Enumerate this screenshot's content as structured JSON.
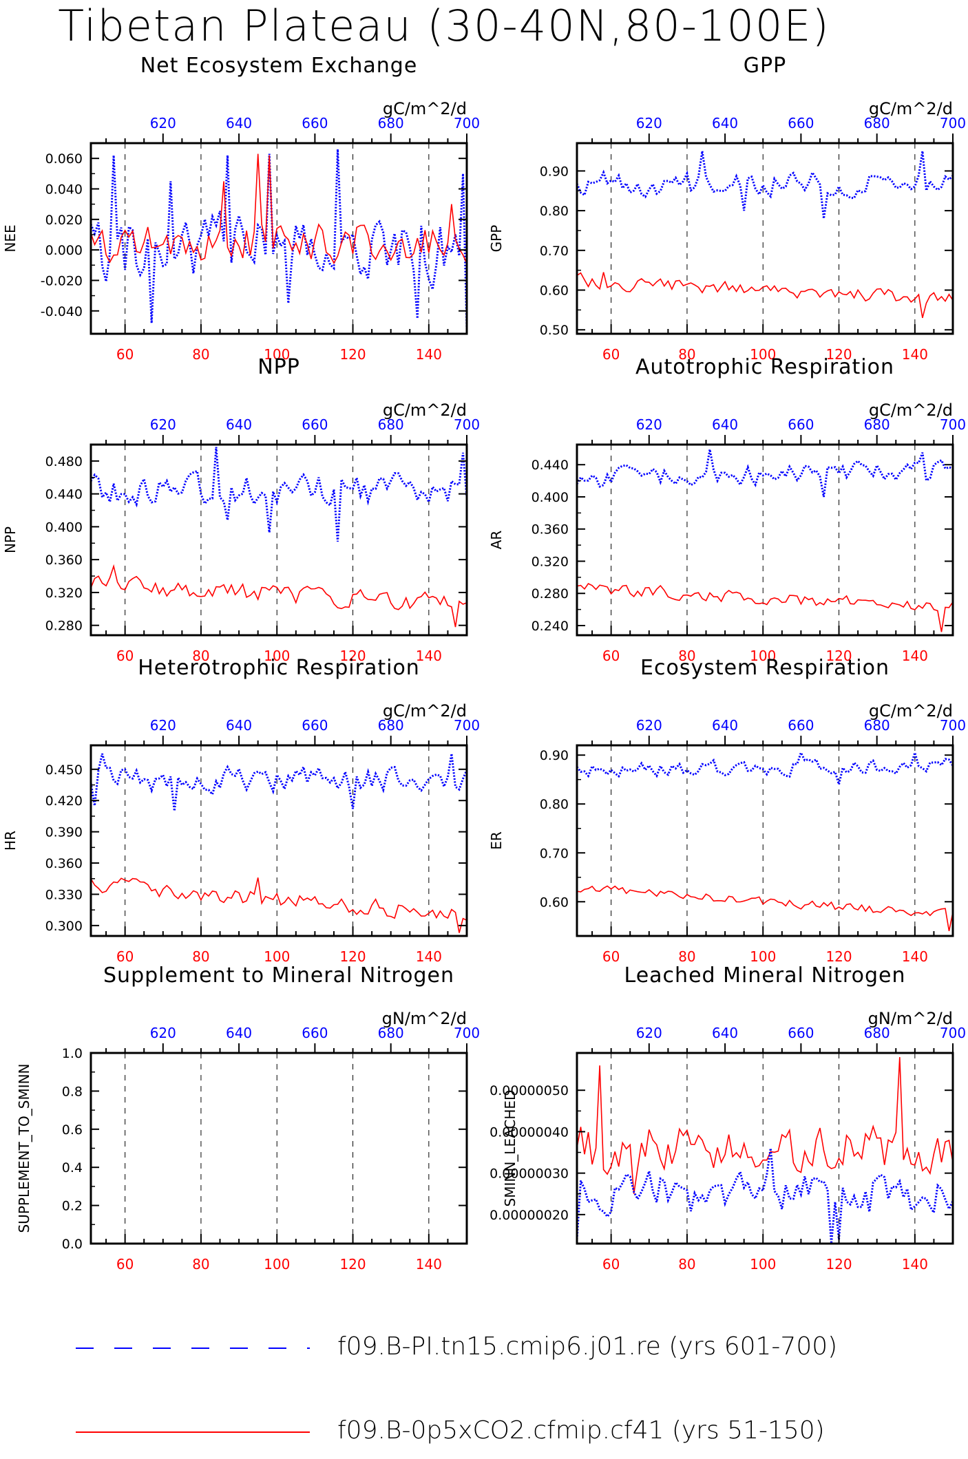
{
  "page": {
    "title": "Tibetan Plateau (30-40N,80-100E)"
  },
  "legend": [
    {
      "label": "f09.B-PI.tn15.cmip6.j01.re (yrs 601-700)",
      "color": "#0000ff",
      "style": "dashed"
    },
    {
      "label": "f09.B-0p5xCO2.cfmip.cf41 (yrs 51-150)",
      "color": "#ff0000",
      "style": "solid"
    }
  ],
  "chart_data": [
    {
      "type": "line",
      "title": "Net Ecosystem Exchange",
      "ylabel": "NEE",
      "units": "gC/m^2/d",
      "xlim_bottom": [
        51,
        150
      ],
      "xlim_top": [
        601,
        700
      ],
      "xticks_bottom": [
        60,
        80,
        100,
        120,
        140
      ],
      "xticks_top": [
        620,
        640,
        660,
        680,
        700
      ],
      "ylim": [
        -0.055,
        0.07
      ],
      "yticks": [
        -0.04,
        -0.02,
        0.0,
        0.02,
        0.04,
        0.06
      ],
      "yticklabels": [
        "-0.040",
        "-0.020",
        "0.000",
        "0.020",
        "0.040",
        "0.060"
      ],
      "series": [
        {
          "name": "f09.B-PI.tn15.cmip6.j01.re (yrs 601-700)",
          "axis": "top",
          "color": "#0000ff",
          "style": "dotted",
          "mean": 0.0,
          "amp": 0.022,
          "trend": 0.0,
          "seed": 11,
          "spikes": [
            [
              607,
              0.062
            ],
            [
              617,
              -0.048
            ],
            [
              622,
              0.045
            ],
            [
              637,
              0.062
            ],
            [
              648,
              0.063
            ],
            [
              653,
              -0.035
            ],
            [
              666,
              0.066
            ],
            [
              687,
              -0.045
            ],
            [
              699,
              0.05
            ],
            [
              700,
              -0.052
            ]
          ]
        },
        {
          "name": "f09.B-0p5xCO2.cfmip.cf41 (yrs 51-150)",
          "axis": "bottom",
          "color": "#ff0000",
          "style": "solid",
          "mean": 0.006,
          "amp": 0.013,
          "trend": 0.0,
          "seed": 23,
          "spikes": [
            [
              86,
              0.045
            ],
            [
              95,
              0.063
            ],
            [
              98,
              0.062
            ],
            [
              146,
              0.03
            ]
          ]
        }
      ]
    },
    {
      "type": "line",
      "title": "GPP",
      "ylabel": "GPP",
      "units": "gC/m^2/d",
      "xlim_bottom": [
        51,
        150
      ],
      "xlim_top": [
        601,
        700
      ],
      "xticks_bottom": [
        60,
        80,
        100,
        120,
        140
      ],
      "xticks_top": [
        620,
        640,
        660,
        680,
        700
      ],
      "ylim": [
        0.49,
        0.97
      ],
      "yticks": [
        0.5,
        0.6,
        0.7,
        0.8,
        0.9
      ],
      "yticklabels": [
        "0.50",
        "0.60",
        "0.70",
        "0.80",
        "0.90"
      ],
      "series": [
        {
          "name": "f09.B-PI.tn15.cmip6.j01.re (yrs 601-700)",
          "axis": "top",
          "color": "#0000ff",
          "style": "dotted",
          "mean": 0.87,
          "amp": 0.03,
          "trend": 0.0,
          "seed": 31,
          "spikes": [
            [
              634,
              0.95
            ],
            [
              645,
              0.8
            ],
            [
              666,
              0.78
            ],
            [
              692,
              0.95
            ]
          ]
        },
        {
          "name": "f09.B-0p5xCO2.cfmip.cf41 (yrs 51-150)",
          "axis": "bottom",
          "color": "#ff0000",
          "style": "solid",
          "mean": 0.6,
          "amp": 0.018,
          "trend": -0.045,
          "seed": 37,
          "spikes": [
            [
              58,
              0.645
            ],
            [
              142,
              0.53
            ]
          ]
        }
      ]
    },
    {
      "type": "line",
      "title": "NPP",
      "ylabel": "NPP",
      "units": "gC/m^2/d",
      "xlim_bottom": [
        51,
        150
      ],
      "xlim_top": [
        601,
        700
      ],
      "xticks_bottom": [
        60,
        80,
        100,
        120,
        140
      ],
      "xticks_top": [
        620,
        640,
        660,
        680,
        700
      ],
      "ylim": [
        0.268,
        0.5
      ],
      "yticks": [
        0.28,
        0.32,
        0.36,
        0.4,
        0.44,
        0.48
      ],
      "yticklabels": [
        "0.280",
        "0.320",
        "0.360",
        "0.400",
        "0.440",
        "0.480"
      ],
      "series": [
        {
          "name": "f09.B-PI.tn15.cmip6.j01.re (yrs 601-700)",
          "axis": "top",
          "color": "#0000ff",
          "style": "dotted",
          "mean": 0.445,
          "amp": 0.018,
          "trend": 0.0,
          "seed": 41,
          "spikes": [
            [
              634,
              0.497
            ],
            [
              637,
              0.408
            ],
            [
              648,
              0.393
            ],
            [
              666,
              0.382
            ],
            [
              699,
              0.49
            ]
          ]
        },
        {
          "name": "f09.B-0p5xCO2.cfmip.cf41 (yrs 51-150)",
          "axis": "bottom",
          "color": "#ff0000",
          "style": "solid",
          "mean": 0.318,
          "amp": 0.011,
          "trend": -0.025,
          "seed": 43,
          "spikes": [
            [
              57,
              0.352
            ],
            [
              147,
              0.278
            ]
          ]
        }
      ]
    },
    {
      "type": "line",
      "title": "Autotrophic Respiration",
      "ylabel": "AR",
      "units": "gC/m^2/d",
      "xlim_bottom": [
        51,
        150
      ],
      "xlim_top": [
        601,
        700
      ],
      "xticks_bottom": [
        60,
        80,
        100,
        120,
        140
      ],
      "xticks_top": [
        620,
        640,
        660,
        680,
        700
      ],
      "ylim": [
        0.228,
        0.465
      ],
      "yticks": [
        0.24,
        0.28,
        0.32,
        0.36,
        0.4,
        0.44
      ],
      "yticklabels": [
        "0.240",
        "0.280",
        "0.320",
        "0.360",
        "0.400",
        "0.440"
      ],
      "series": [
        {
          "name": "f09.B-PI.tn15.cmip6.j01.re (yrs 601-700)",
          "axis": "top",
          "color": "#0000ff",
          "style": "dotted",
          "mean": 0.428,
          "amp": 0.012,
          "trend": 0.01,
          "seed": 51,
          "spikes": [
            [
              636,
              0.459
            ],
            [
              666,
              0.4
            ],
            [
              692,
              0.455
            ]
          ]
        },
        {
          "name": "f09.B-0p5xCO2.cfmip.cf41 (yrs 51-150)",
          "axis": "bottom",
          "color": "#ff0000",
          "style": "solid",
          "mean": 0.275,
          "amp": 0.008,
          "trend": -0.025,
          "seed": 53,
          "spikes": [
            [
              59,
              0.288
            ],
            [
              147,
              0.232
            ]
          ]
        }
      ]
    },
    {
      "type": "line",
      "title": "Heterotrophic Respiration",
      "ylabel": "HR",
      "units": "gC/m^2/d",
      "xlim_bottom": [
        51,
        150
      ],
      "xlim_top": [
        601,
        700
      ],
      "xticks_bottom": [
        60,
        80,
        100,
        120,
        140
      ],
      "xticks_top": [
        620,
        640,
        660,
        680,
        700
      ],
      "ylim": [
        0.29,
        0.473
      ],
      "yticks": [
        0.3,
        0.33,
        0.36,
        0.39,
        0.42,
        0.45
      ],
      "yticklabels": [
        "0.300",
        "0.330",
        "0.360",
        "0.390",
        "0.420",
        "0.450"
      ],
      "series": [
        {
          "name": "f09.B-PI.tn15.cmip6.j01.re (yrs 601-700)",
          "axis": "top",
          "color": "#0000ff",
          "style": "dotted",
          "mean": 0.44,
          "amp": 0.012,
          "trend": 0.0,
          "seed": 61,
          "spikes": [
            [
              602,
              0.415
            ],
            [
              604,
              0.465
            ],
            [
              623,
              0.41
            ],
            [
              670,
              0.412
            ],
            [
              696,
              0.465
            ]
          ]
        },
        {
          "name": "f09.B-0p5xCO2.cfmip.cf41 (yrs 51-150)",
          "axis": "bottom",
          "color": "#ff0000",
          "style": "solid",
          "mean": 0.325,
          "amp": 0.008,
          "trend": -0.03,
          "seed": 67,
          "spikes": [
            [
              95,
              0.346
            ],
            [
              148,
              0.293
            ]
          ]
        }
      ]
    },
    {
      "type": "line",
      "title": "Ecosystem Respiration",
      "ylabel": "ER",
      "units": "gC/m^2/d",
      "xlim_bottom": [
        51,
        150
      ],
      "xlim_top": [
        601,
        700
      ],
      "xticks_bottom": [
        60,
        80,
        100,
        120,
        140
      ],
      "xticks_top": [
        620,
        640,
        660,
        680,
        700
      ],
      "ylim": [
        0.53,
        0.92
      ],
      "yticks": [
        0.6,
        0.7,
        0.8,
        0.9
      ],
      "yticklabels": [
        "0.60",
        "0.70",
        "0.80",
        "0.90"
      ],
      "series": [
        {
          "name": "f09.B-PI.tn15.cmip6.j01.re (yrs 601-700)",
          "axis": "top",
          "color": "#0000ff",
          "style": "dotted",
          "mean": 0.875,
          "amp": 0.015,
          "trend": 0.01,
          "seed": 71,
          "spikes": [
            [
              660,
              0.905
            ],
            [
              670,
              0.84
            ],
            [
              690,
              0.905
            ]
          ]
        },
        {
          "name": "f09.B-0p5xCO2.cfmip.cf41 (yrs 51-150)",
          "axis": "bottom",
          "color": "#ff0000",
          "style": "solid",
          "mean": 0.6,
          "amp": 0.01,
          "trend": -0.055,
          "seed": 73,
          "spikes": [
            [
              62,
              0.625
            ],
            [
              149,
              0.54
            ]
          ]
        }
      ]
    },
    {
      "type": "line",
      "title": "Supplement to Mineral Nitrogen",
      "ylabel": "SUPPLEMENT_TO_SMINN",
      "units": "gN/m^2/d",
      "xlim_bottom": [
        51,
        150
      ],
      "xlim_top": [
        601,
        700
      ],
      "xticks_bottom": [
        60,
        80,
        100,
        120,
        140
      ],
      "xticks_top": [
        620,
        640,
        660,
        680,
        700
      ],
      "ylim": [
        0.0,
        1.0
      ],
      "yticks": [
        0.0,
        0.2,
        0.4,
        0.6,
        0.8,
        1.0
      ],
      "yticklabels": [
        "0.0",
        "0.2",
        "0.4",
        "0.6",
        "0.8",
        "1.0"
      ],
      "series": []
    },
    {
      "type": "line",
      "title": "Leached Mineral Nitrogen",
      "ylabel": "SMINN_LEACHED",
      "units": "gN/m^2/d",
      "xlim_bottom": [
        51,
        150
      ],
      "xlim_top": [
        601,
        700
      ],
      "xticks_bottom": [
        60,
        80,
        100,
        120,
        140
      ],
      "xticks_top": [
        620,
        640,
        660,
        680,
        700
      ],
      "ylim": [
        1.3e-07,
        5.9e-07
      ],
      "yticks": [
        2e-07,
        3e-07,
        4e-07,
        5e-07
      ],
      "yticklabels": [
        "0.00000020",
        "0.00000030",
        "0.00000040",
        "0.00000050"
      ],
      "series": [
        {
          "name": "f09.B-0p5xCO2.cfmip.cf41 (yrs 51-150)",
          "axis": "bottom",
          "color": "#ff0000",
          "style": "solid",
          "mean": 3.6e-07,
          "amp": 6e-08,
          "trend": 0.0,
          "seed": 83,
          "spikes": [
            [
              57,
              5.6e-07
            ],
            [
              136,
              5.8e-07
            ],
            [
              66,
              2.5e-07
            ]
          ]
        },
        {
          "name": "f09.B-PI.tn15.cmip6.j01.re (yrs 601-700)",
          "axis": "top",
          "color": "#0000ff",
          "style": "dotted",
          "mean": 2.5e-07,
          "amp": 5e-08,
          "trend": 0.0,
          "seed": 89,
          "spikes": [
            [
              601,
              1.4e-07
            ],
            [
              668,
              1.3e-07
            ],
            [
              670,
              1.4e-07
            ],
            [
              652,
              3.6e-07
            ]
          ]
        }
      ]
    }
  ]
}
